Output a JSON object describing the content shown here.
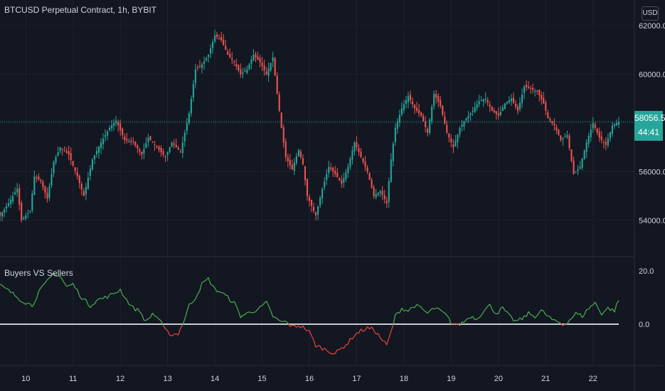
{
  "header": {
    "title": "BTCUSD Perpetual Contract, 1h, BYBIT"
  },
  "price_axis": {
    "currency": "USD"
  },
  "current": {
    "price": "58056.5",
    "countdown": "44:41"
  },
  "indicator": {
    "title": "Buyers VS Sellers"
  },
  "colors": {
    "background": "#131722",
    "up": "#26a69a",
    "down": "#ef5350",
    "grid": "#1e222d",
    "axis_text": "#d1d4dc",
    "zero_line": "#d1d4dc"
  },
  "chart_data": [
    {
      "type": "candlestick",
      "title": "BTCUSD Perpetual Contract, 1h, BYBIT",
      "x_ticks": [
        "10",
        "11",
        "12",
        "13",
        "14",
        "15",
        "16",
        "17",
        "18",
        "19",
        "20",
        "21",
        "22"
      ],
      "y_ticks": [
        54000,
        56000,
        58000,
        60000,
        62000
      ],
      "y_tick_labels": [
        "54000.0",
        "56000.0",
        "",
        "60000.0",
        "62000.0"
      ],
      "ylim": [
        52800,
        62300
      ],
      "current_price": 58056.5,
      "anchors": [
        [
          0,
          54200
        ],
        [
          4,
          54700
        ],
        [
          8,
          55300
        ],
        [
          10,
          54000
        ],
        [
          14,
          54400
        ],
        [
          16,
          55800
        ],
        [
          19,
          55600
        ],
        [
          22,
          54900
        ],
        [
          25,
          56400
        ],
        [
          28,
          57000
        ],
        [
          32,
          56700
        ],
        [
          36,
          55800
        ],
        [
          39,
          55000
        ],
        [
          43,
          56500
        ],
        [
          47,
          57200
        ],
        [
          51,
          57800
        ],
        [
          54,
          58100
        ],
        [
          58,
          57300
        ],
        [
          62,
          57200
        ],
        [
          66,
          56700
        ],
        [
          69,
          57400
        ],
        [
          73,
          57000
        ],
        [
          77,
          56600
        ],
        [
          80,
          57200
        ],
        [
          84,
          56800
        ],
        [
          88,
          58400
        ],
        [
          91,
          60200
        ],
        [
          94,
          60400
        ],
        [
          97,
          60800
        ],
        [
          100,
          61600
        ],
        [
          103,
          61400
        ],
        [
          106,
          60800
        ],
        [
          109,
          60500
        ],
        [
          112,
          60000
        ],
        [
          115,
          60200
        ],
        [
          118,
          60800
        ],
        [
          121,
          60500
        ],
        [
          124,
          60000
        ],
        [
          127,
          60700
        ],
        [
          129,
          59200
        ],
        [
          131,
          57800
        ],
        [
          133,
          56600
        ],
        [
          136,
          56100
        ],
        [
          139,
          56900
        ],
        [
          141,
          56300
        ],
        [
          143,
          55000
        ],
        [
          145,
          54600
        ],
        [
          147,
          54200
        ],
        [
          150,
          55300
        ],
        [
          153,
          56200
        ],
        [
          156,
          55900
        ],
        [
          159,
          55500
        ],
        [
          162,
          56200
        ],
        [
          165,
          57200
        ],
        [
          168,
          56600
        ],
        [
          171,
          56000
        ],
        [
          174,
          55000
        ],
        [
          177,
          55200
        ],
        [
          180,
          54700
        ],
        [
          182,
          56500
        ],
        [
          184,
          57800
        ],
        [
          187,
          58600
        ],
        [
          190,
          59100
        ],
        [
          193,
          58600
        ],
        [
          196,
          58300
        ],
        [
          199,
          57600
        ],
        [
          202,
          59200
        ],
        [
          205,
          58700
        ],
        [
          208,
          57600
        ],
        [
          211,
          57000
        ],
        [
          214,
          57800
        ],
        [
          217,
          58200
        ],
        [
          220,
          58500
        ],
        [
          223,
          58900
        ],
        [
          226,
          59000
        ],
        [
          229,
          58500
        ],
        [
          232,
          58300
        ],
        [
          235,
          58800
        ],
        [
          238,
          59000
        ],
        [
          241,
          58500
        ],
        [
          244,
          59500
        ],
        [
          247,
          59400
        ],
        [
          250,
          59300
        ],
        [
          253,
          58800
        ],
        [
          255,
          58200
        ],
        [
          258,
          57900
        ],
        [
          261,
          57300
        ],
        [
          264,
          57500
        ],
        [
          267,
          55900
        ],
        [
          270,
          56200
        ],
        [
          273,
          57200
        ],
        [
          276,
          58000
        ],
        [
          279,
          57400
        ],
        [
          282,
          57100
        ],
        [
          285,
          57900
        ],
        [
          288,
          58056.5
        ]
      ]
    },
    {
      "type": "line",
      "title": "Buyers VS Sellers",
      "y_ticks": [
        0,
        20
      ],
      "y_tick_labels": [
        "0.0",
        "20.0"
      ],
      "ylim": [
        -12,
        22
      ],
      "colors": {
        "above": "#4caf50",
        "below": "#f44336"
      },
      "anchors": [
        [
          0,
          14.5
        ],
        [
          5,
          12
        ],
        [
          10,
          9
        ],
        [
          15,
          7
        ],
        [
          18,
          12
        ],
        [
          22,
          16
        ],
        [
          25,
          19
        ],
        [
          28,
          18
        ],
        [
          31,
          14
        ],
        [
          34,
          15
        ],
        [
          38,
          10
        ],
        [
          42,
          7
        ],
        [
          45,
          9
        ],
        [
          49,
          10
        ],
        [
          52,
          11
        ],
        [
          56,
          13
        ],
        [
          59,
          9
        ],
        [
          62,
          6
        ],
        [
          65,
          5
        ],
        [
          68,
          0.8
        ],
        [
          71,
          4
        ],
        [
          74,
          2
        ],
        [
          77,
          -2.5
        ],
        [
          80,
          -4
        ],
        [
          83,
          -3.5
        ],
        [
          86,
          2
        ],
        [
          88,
          7
        ],
        [
          91,
          10
        ],
        [
          94,
          15
        ],
        [
          97,
          17
        ],
        [
          100,
          13
        ],
        [
          103,
          12
        ],
        [
          106,
          10
        ],
        [
          109,
          8
        ],
        [
          112,
          3
        ],
        [
          115,
          4
        ],
        [
          118,
          5
        ],
        [
          121,
          6
        ],
        [
          124,
          8
        ],
        [
          127,
          3
        ],
        [
          130,
          1
        ],
        [
          133,
          0.8
        ],
        [
          136,
          -1
        ],
        [
          139,
          -0.5
        ],
        [
          142,
          -1.5
        ],
        [
          144,
          -3
        ],
        [
          147,
          -8
        ],
        [
          150,
          -9
        ],
        [
          153,
          -10
        ],
        [
          156,
          -11
        ],
        [
          159,
          -9
        ],
        [
          162,
          -7
        ],
        [
          165,
          -4
        ],
        [
          168,
          -2.5
        ],
        [
          171,
          -1.5
        ],
        [
          174,
          -2
        ],
        [
          177,
          -5
        ],
        [
          180,
          -8
        ],
        [
          182,
          -3
        ],
        [
          184,
          3
        ],
        [
          187,
          6
        ],
        [
          190,
          5
        ],
        [
          193,
          7
        ],
        [
          196,
          6
        ],
        [
          199,
          4
        ],
        [
          202,
          6
        ],
        [
          205,
          5
        ],
        [
          208,
          3
        ],
        [
          210,
          0.5
        ],
        [
          213,
          -0.5
        ],
        [
          216,
          1
        ],
        [
          219,
          3
        ],
        [
          222,
          2
        ],
        [
          225,
          5
        ],
        [
          228,
          7
        ],
        [
          231,
          4
        ],
        [
          234,
          6
        ],
        [
          237,
          3
        ],
        [
          240,
          1
        ],
        [
          243,
          2
        ],
        [
          246,
          4
        ],
        [
          249,
          3
        ],
        [
          252,
          5
        ],
        [
          255,
          3
        ],
        [
          258,
          1
        ],
        [
          260,
          0.8
        ],
        [
          262,
          -0.3
        ],
        [
          265,
          1.5
        ],
        [
          268,
          4
        ],
        [
          271,
          3
        ],
        [
          274,
          6
        ],
        [
          277,
          8
        ],
        [
          280,
          4
        ],
        [
          283,
          6
        ],
        [
          286,
          5
        ],
        [
          288,
          9
        ]
      ]
    }
  ]
}
